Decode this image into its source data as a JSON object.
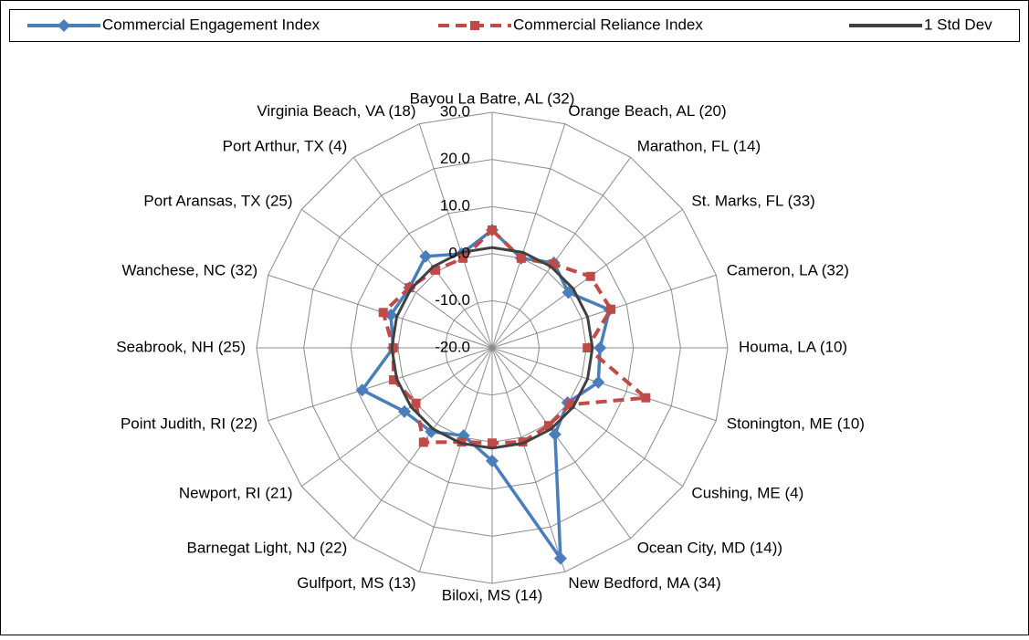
{
  "chart_data": {
    "type": "radar",
    "categories": [
      "Bayou La Batre, AL (32)",
      "Orange Beach, AL (20)",
      "Marathon, FL (14)",
      "St. Marks, FL (33)",
      "Cameron, LA (32)",
      "Houma, LA (10)",
      "Stonington, ME (10)",
      "Cushing, ME (4)",
      "Ocean City, MD (14))",
      "New Bedford, MA (34)",
      "Biloxi, MS (14)",
      "Gulfport, MS (13)",
      "Barnegat Light, NJ (22)",
      "Newport, RI (21)",
      "Point Judith, RI (22)",
      "Seabrook, NH (25)",
      "Wanchese, NC (32)",
      "Port Aransas, TX (25)",
      "Port Arthur, TX (4)",
      "Virginia Beach, VA (18)"
    ],
    "series": [
      {
        "name": "Commercial Engagement Index",
        "color": "#4a7ebb",
        "marker": "diamond",
        "dash": false,
        "values": [
          5,
          0,
          2.3,
          0,
          6.2,
          2.9,
          3.7,
          -0.2,
          2.7,
          27,
          4,
          -0.4,
          2,
          3,
          9,
          1,
          2.6,
          1.7,
          4,
          1
        ]
      },
      {
        "name": "Commercial Reliance Index",
        "color": "#be4b48",
        "marker": "square",
        "dash": true,
        "values": [
          5,
          0,
          2,
          5.8,
          6.5,
          0.2,
          14.3,
          0.5,
          0.4,
          1,
          0.2,
          1,
          4.8,
          0,
          2,
          1,
          4.3,
          1.7,
          0.4,
          0
        ]
      },
      {
        "name": "1 Std Dev",
        "color": "#404040",
        "marker": "none",
        "dash": false,
        "values": [
          1.3,
          1.3,
          1.3,
          1.3,
          1.3,
          1.3,
          1.3,
          1.3,
          1.3,
          1.3,
          1.3,
          1.3,
          1.3,
          1.3,
          1.3,
          1.3,
          1.3,
          1.3,
          1.3,
          1.3
        ]
      }
    ],
    "ylim": [
      -20,
      30
    ],
    "yticks": [
      {
        "value": -20,
        "label": "-20.0"
      },
      {
        "value": -10,
        "label": "-10.0"
      },
      {
        "value": 0,
        "label": "0.0"
      },
      {
        "value": 10,
        "label": "10.0"
      },
      {
        "value": 20,
        "label": "20.0"
      },
      {
        "value": 30,
        "label": "30.0"
      }
    ],
    "grid": true,
    "legend": "top"
  }
}
